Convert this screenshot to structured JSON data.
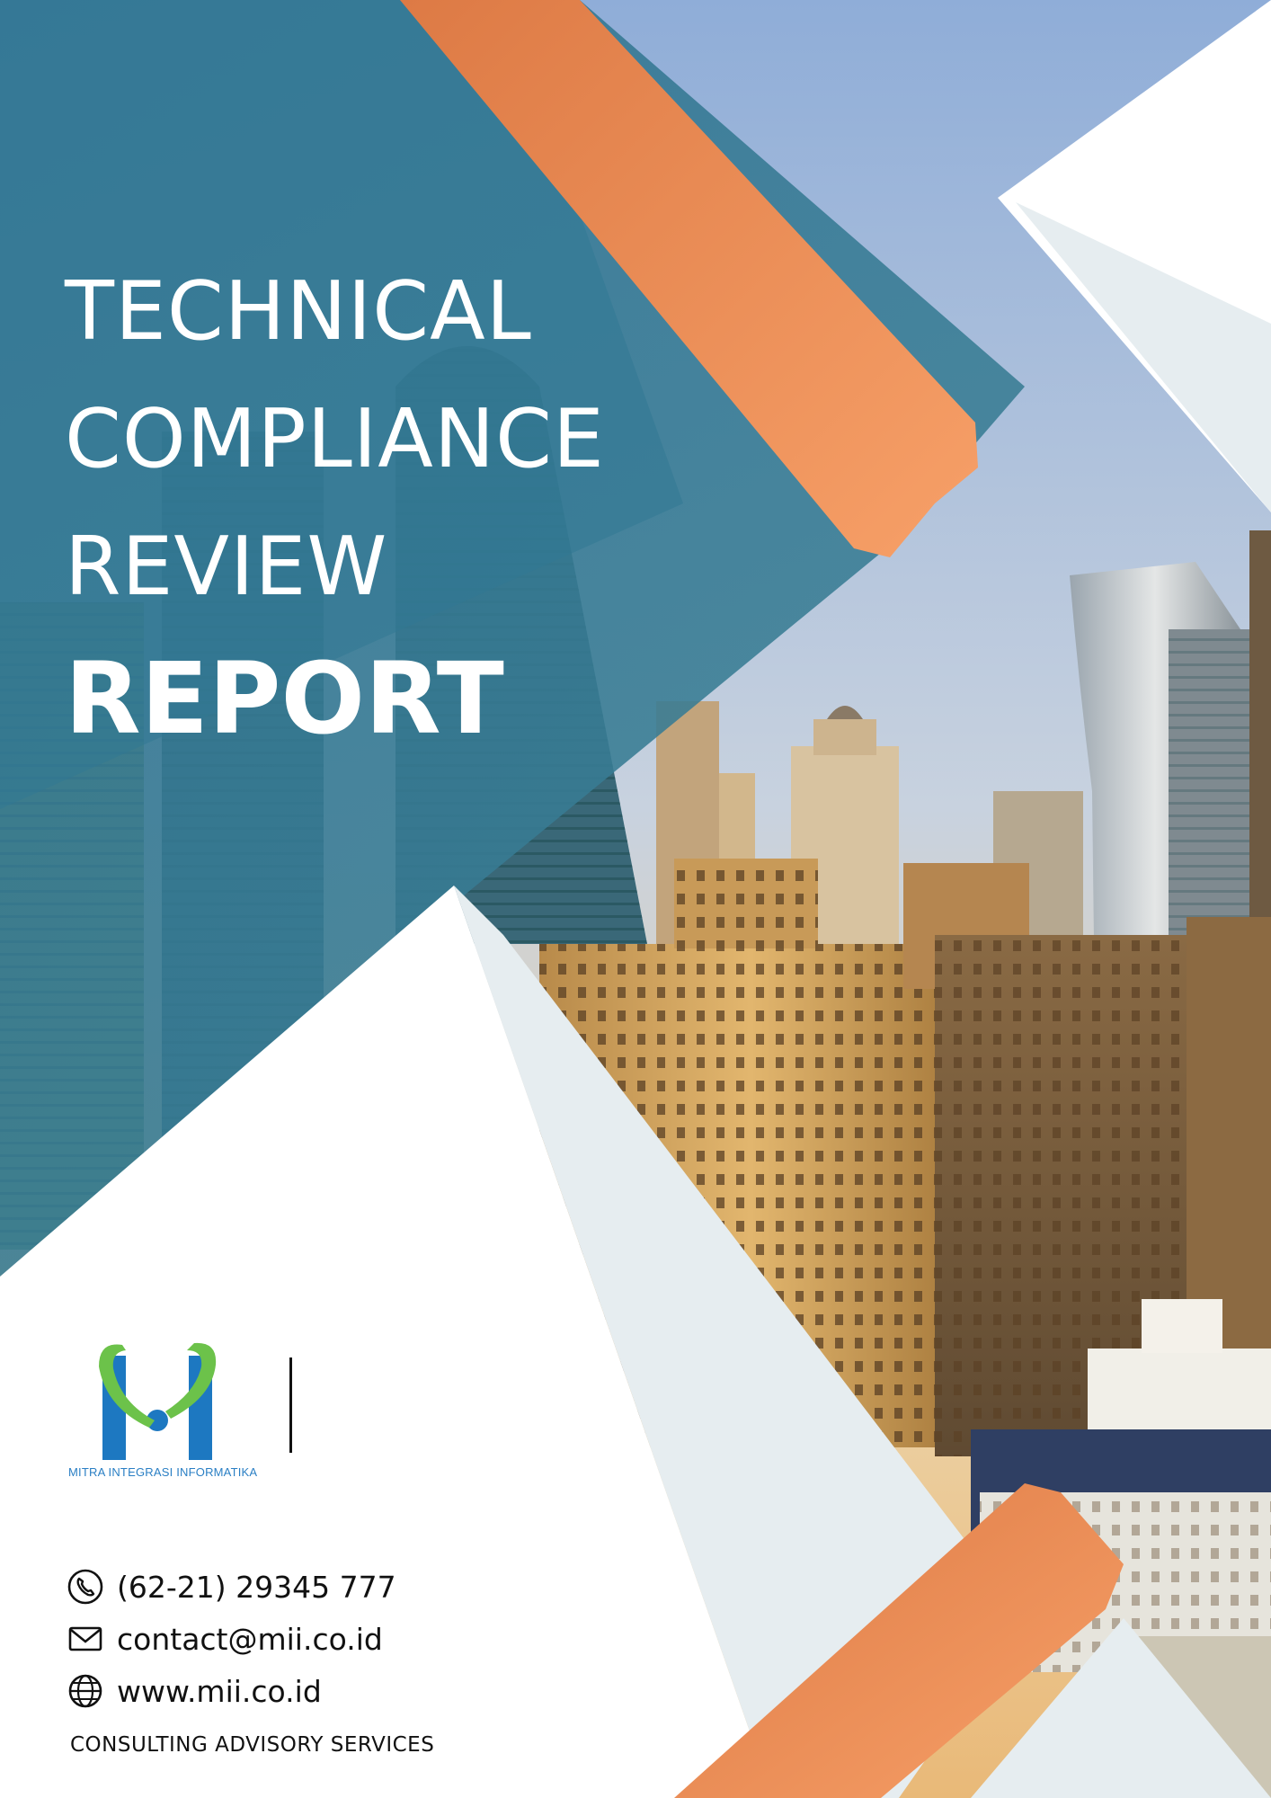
{
  "title": {
    "line1": "TECHNICAL",
    "line2": "COMPLIANCE",
    "line3": "REVIEW",
    "line4": "REPORT"
  },
  "logo": {
    "company_name": "MITRA INTEGRASI INFORMATIKA",
    "icon": "mii-logo"
  },
  "contact": {
    "phone": "(62-21) 29345 777",
    "email": "contact@mii.co.id",
    "website": "www.mii.co.id"
  },
  "tagline": "CONSULTING ADVISORY SERVICES",
  "colors": {
    "teal": "#367b93",
    "orange": "#f0864a",
    "light_gray": "#e6edf0",
    "sky": "#9fb6d8",
    "logo_blue": "#1d78c1",
    "logo_green": "#6cc24a"
  }
}
